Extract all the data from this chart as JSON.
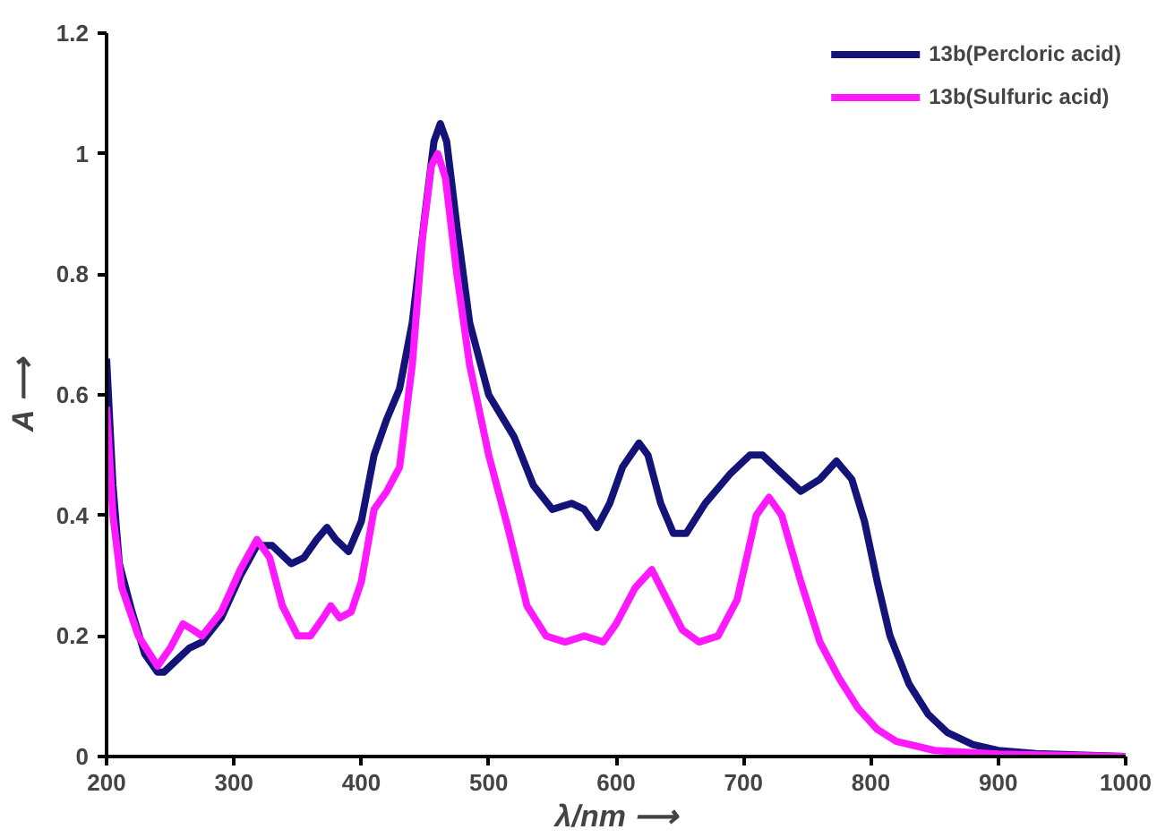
{
  "chart_data": {
    "type": "line",
    "xlabel": "λ/nm ⟶",
    "ylabel": "A ⟶",
    "xlim": [
      200,
      1000
    ],
    "ylim": [
      0,
      1.2
    ],
    "xticks": [
      200,
      300,
      400,
      500,
      600,
      700,
      800,
      900,
      1000
    ],
    "yticks": [
      0,
      0.2,
      0.4,
      0.6,
      0.8,
      1,
      1.2
    ],
    "grid": false,
    "legend": "top right",
    "marker": "none",
    "line_style": "solid",
    "series": [
      {
        "name": "13b(Percloric acid)",
        "color": "#141478",
        "x": [
          200,
          205,
          210,
          220,
          230,
          240,
          245,
          255,
          265,
          275,
          290,
          305,
          318,
          330,
          345,
          355,
          365,
          373,
          380,
          390,
          400,
          410,
          420,
          430,
          440,
          450,
          457,
          462,
          467,
          475,
          485,
          500,
          520,
          535,
          550,
          565,
          575,
          585,
          595,
          605,
          618,
          625,
          635,
          645,
          655,
          670,
          690,
          705,
          715,
          730,
          745,
          760,
          773,
          785,
          795,
          805,
          815,
          830,
          845,
          860,
          880,
          900,
          930,
          1000
        ],
        "values": [
          0.66,
          0.45,
          0.32,
          0.24,
          0.17,
          0.14,
          0.14,
          0.16,
          0.18,
          0.19,
          0.23,
          0.3,
          0.35,
          0.35,
          0.32,
          0.33,
          0.36,
          0.38,
          0.36,
          0.34,
          0.39,
          0.5,
          0.56,
          0.61,
          0.72,
          0.9,
          1.02,
          1.05,
          1.02,
          0.88,
          0.72,
          0.6,
          0.53,
          0.45,
          0.41,
          0.42,
          0.41,
          0.38,
          0.42,
          0.48,
          0.52,
          0.5,
          0.42,
          0.37,
          0.37,
          0.42,
          0.47,
          0.5,
          0.5,
          0.47,
          0.44,
          0.46,
          0.49,
          0.46,
          0.39,
          0.29,
          0.2,
          0.12,
          0.07,
          0.04,
          0.02,
          0.01,
          0.005,
          0
        ]
      },
      {
        "name": "13b(Sulfuric acid)",
        "color": "#ff19ff",
        "x": [
          200,
          205,
          212,
          225,
          240,
          250,
          260,
          268,
          275,
          290,
          305,
          318,
          328,
          338,
          350,
          360,
          370,
          376,
          383,
          392,
          400,
          410,
          420,
          430,
          440,
          448,
          455,
          460,
          466,
          475,
          485,
          500,
          515,
          530,
          545,
          560,
          575,
          590,
          600,
          615,
          628,
          640,
          652,
          665,
          680,
          695,
          710,
          720,
          730,
          745,
          760,
          775,
          790,
          805,
          820,
          850,
          900,
          1000
        ],
        "values": [
          0.58,
          0.4,
          0.28,
          0.2,
          0.15,
          0.18,
          0.22,
          0.21,
          0.2,
          0.24,
          0.31,
          0.36,
          0.33,
          0.25,
          0.2,
          0.2,
          0.23,
          0.25,
          0.23,
          0.24,
          0.29,
          0.41,
          0.44,
          0.48,
          0.65,
          0.86,
          0.98,
          1.0,
          0.96,
          0.8,
          0.65,
          0.5,
          0.38,
          0.25,
          0.2,
          0.19,
          0.2,
          0.19,
          0.22,
          0.28,
          0.31,
          0.26,
          0.21,
          0.19,
          0.2,
          0.26,
          0.4,
          0.43,
          0.4,
          0.29,
          0.19,
          0.13,
          0.08,
          0.045,
          0.025,
          0.01,
          0.004,
          0
        ]
      }
    ]
  }
}
